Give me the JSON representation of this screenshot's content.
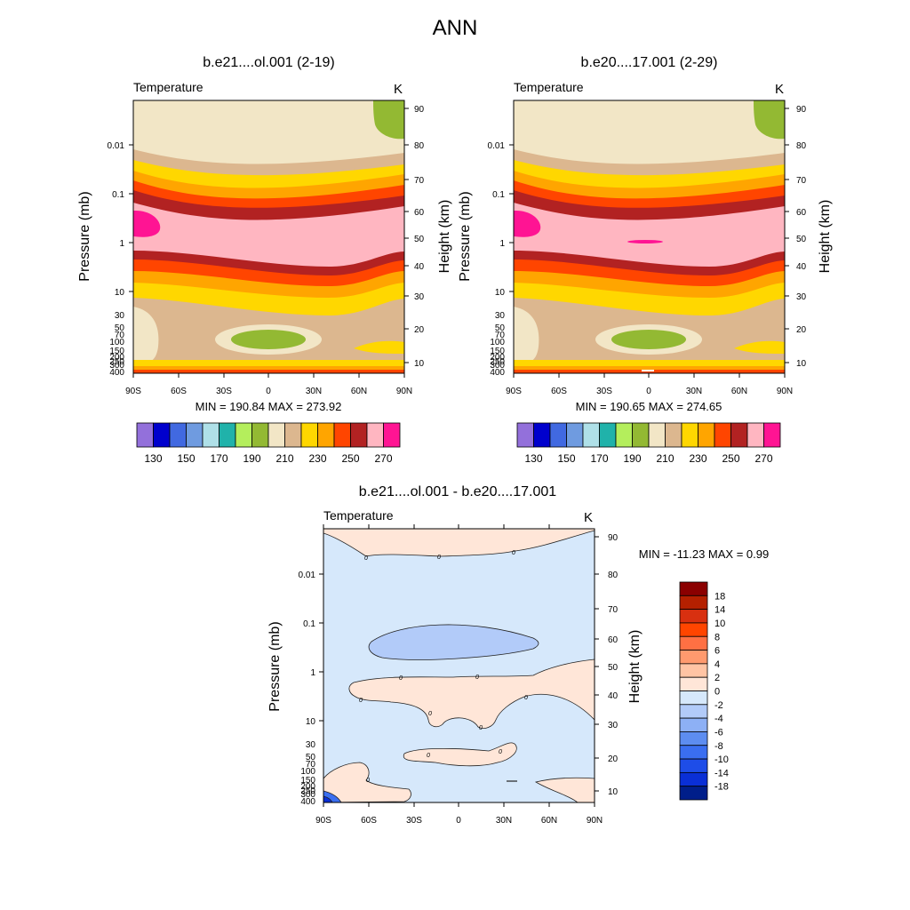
{
  "figure": {
    "title": "ANN"
  },
  "chart_data": [
    {
      "type": "heatmap",
      "title": "b.e21....ol.001 (2-19)",
      "variable": "Temperature",
      "units": "K",
      "ylabel": "Pressure (mb)",
      "ylabel_right": "Height (km)",
      "x_ticks": [
        "90S",
        "60S",
        "30S",
        "0",
        "30N",
        "60N",
        "90N"
      ],
      "y_ticks": [
        "0.01",
        "0.1",
        "1",
        "10",
        "30",
        "50",
        "70",
        "100",
        "150",
        "200",
        "250",
        "300",
        "400"
      ],
      "height_ticks": [
        "90",
        "80",
        "70",
        "60",
        "50",
        "40",
        "30",
        "20",
        "10"
      ],
      "stats": "MIN = 190.84  MAX = 273.92",
      "min": 190.84,
      "max": 273.92,
      "colorbar": {
        "levels": [
          "130",
          "150",
          "170",
          "190",
          "210",
          "230",
          "250",
          "270"
        ],
        "colors": [
          "#9370db",
          "#0000cd",
          "#4169e1",
          "#6f9be0",
          "#afe0e8",
          "#20b2aa",
          "#b4ee5c",
          "#93b933",
          "#f2e6c6",
          "#dcb78f",
          "#ffd700",
          "#ffa500",
          "#ff4500",
          "#b22222",
          "#ffb6c1",
          "#ff1493"
        ]
      }
    },
    {
      "type": "heatmap",
      "title": "b.e20....17.001 (2-29)",
      "variable": "Temperature",
      "units": "K",
      "ylabel": "Pressure (mb)",
      "ylabel_right": "Height (km)",
      "x_ticks": [
        "90S",
        "60S",
        "30S",
        "0",
        "30N",
        "60N",
        "90N"
      ],
      "y_ticks": [
        "0.01",
        "0.1",
        "1",
        "10",
        "30",
        "50",
        "70",
        "100",
        "150",
        "200",
        "250",
        "300",
        "400"
      ],
      "height_ticks": [
        "90",
        "80",
        "70",
        "60",
        "50",
        "40",
        "30",
        "20",
        "10"
      ],
      "stats": "MIN = 190.65  MAX = 274.65",
      "min": 190.65,
      "max": 274.65,
      "colorbar": {
        "levels": [
          "130",
          "150",
          "170",
          "190",
          "210",
          "230",
          "250",
          "270"
        ],
        "colors": [
          "#9370db",
          "#0000cd",
          "#4169e1",
          "#6f9be0",
          "#afe0e8",
          "#20b2aa",
          "#b4ee5c",
          "#93b933",
          "#f2e6c6",
          "#dcb78f",
          "#ffd700",
          "#ffa500",
          "#ff4500",
          "#b22222",
          "#ffb6c1",
          "#ff1493"
        ]
      }
    },
    {
      "type": "heatmap",
      "title": "b.e21....ol.001 - b.e20....17.001",
      "variable": "Temperature",
      "units": "K",
      "ylabel": "Pressure (mb)",
      "ylabel_right": "Height (km)",
      "x_ticks": [
        "90S",
        "60S",
        "30S",
        "0",
        "30N",
        "60N",
        "90N"
      ],
      "y_ticks": [
        "0.01",
        "0.1",
        "1",
        "10",
        "30",
        "50",
        "70",
        "100",
        "150",
        "200",
        "250",
        "300",
        "400"
      ],
      "height_ticks": [
        "90",
        "80",
        "70",
        "60",
        "50",
        "40",
        "30",
        "20",
        "10"
      ],
      "stats": "MIN = -11.23  MAX =   0.99",
      "min": -11.23,
      "max": 0.99,
      "contour_labels": [
        "0",
        "0",
        "0",
        "0",
        "0",
        "0",
        "0",
        "0",
        "0",
        "0",
        "0",
        "0"
      ],
      "colorbar": {
        "levels": [
          "18",
          "14",
          "10",
          "8",
          "6",
          "4",
          "2",
          "0",
          "-2",
          "-4",
          "-6",
          "-8",
          "-10",
          "-14",
          "-18"
        ],
        "colors": [
          "#8b0000",
          "#b52000",
          "#d83010",
          "#ff4500",
          "#ff7043",
          "#ff9a6e",
          "#ffc4a4",
          "#ffe6d8",
          "#d6e8fb",
          "#b2cbf9",
          "#8db0f5",
          "#5d8df0",
          "#3a6ef0",
          "#1e4de8",
          "#0a2fd6",
          "#001e8a"
        ]
      }
    }
  ]
}
